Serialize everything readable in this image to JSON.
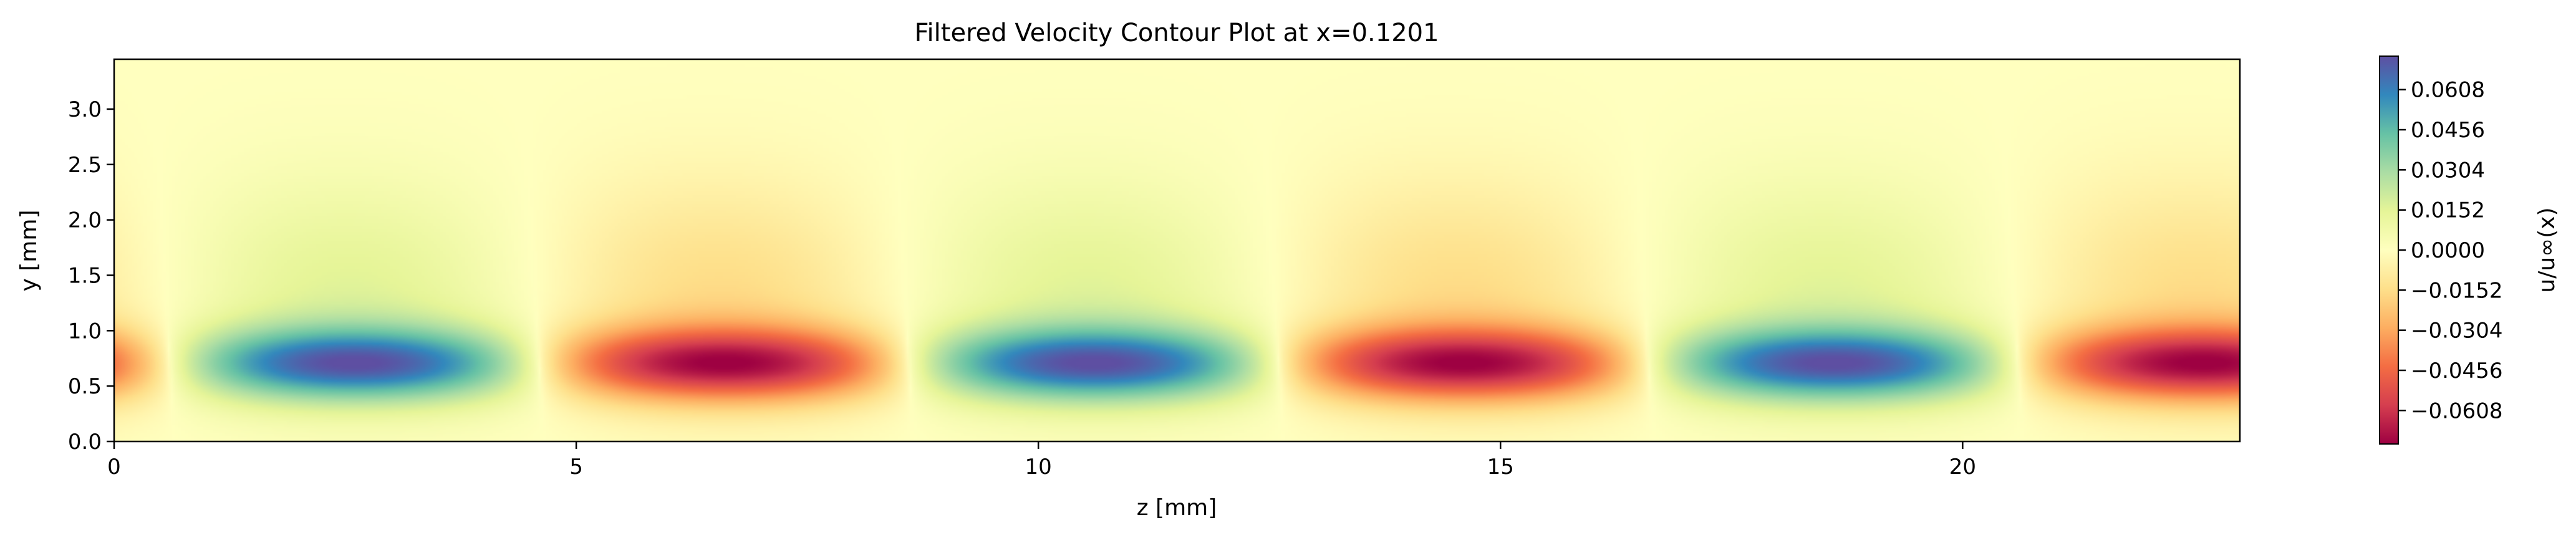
{
  "chart_data": {
    "type": "heatmap",
    "title": "Filtered Velocity Contour Plot at x=0.1201",
    "xlabel": "z [mm]",
    "ylabel": "y [mm]",
    "xlim": [
      0,
      23
    ],
    "ylim": [
      0,
      3.45
    ],
    "xticks": [
      0,
      5,
      10,
      15,
      20
    ],
    "xtick_labels": [
      "0",
      "5",
      "10",
      "15",
      "20"
    ],
    "yticks": [
      0.0,
      0.5,
      1.0,
      1.5,
      2.0,
      2.5,
      3.0
    ],
    "ytick_labels": [
      "0.0",
      "0.5",
      "1.0",
      "1.5",
      "2.0",
      "2.5",
      "3.0"
    ],
    "grid": false,
    "colormap": "Spectral",
    "colorbar": {
      "label": "u/u∞(x)",
      "range": [
        -0.0735,
        0.0735
      ],
      "ticks": [
        0.0608,
        0.0456,
        0.0304,
        0.0152,
        0.0,
        -0.0152,
        -0.0304,
        -0.0456,
        -0.0608
      ],
      "tick_labels": [
        "0.0608",
        "0.0456",
        "0.0304",
        "0.0152",
        "0.0000",
        "−0.0152",
        "−0.0304",
        "−0.0456",
        "−0.0608"
      ]
    },
    "field": {
      "description_of_pattern": "periodic streaks",
      "spanwise_period_mm": 8.0,
      "peak_y_mm": 0.7,
      "positive_streak_centers_z_mm": [
        2.6,
        10.6,
        18.6
      ],
      "negative_streak_centers_z_mm": [
        6.6,
        14.6,
        22.6
      ],
      "peak_amplitude": 0.07
    },
    "colors": {
      "spectral_stops": [
        "#9e0142",
        "#d53e4f",
        "#f46d43",
        "#fdae61",
        "#fee08b",
        "#ffffbf",
        "#e6f598",
        "#abdda4",
        "#66c2a5",
        "#3288bd",
        "#5e4fa2"
      ]
    }
  }
}
